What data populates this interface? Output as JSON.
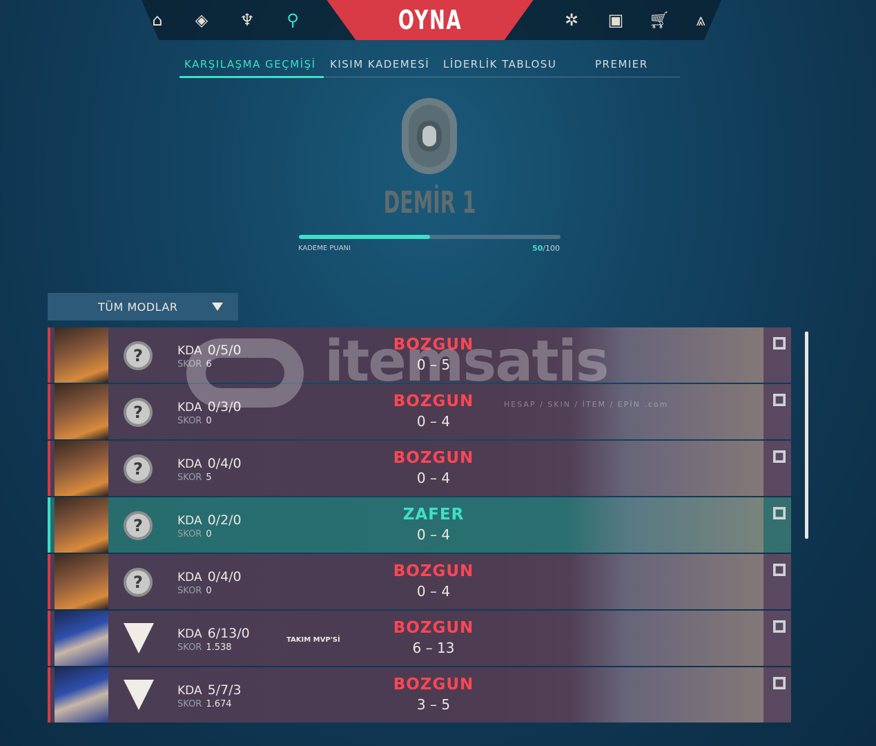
{
  "nav": {
    "play_label": "OYNA",
    "icons": [
      "home-icon",
      "agents-icon",
      "collection-icon",
      "career-icon",
      "esports-icon",
      "battlepass-icon",
      "store-icon",
      "rank-icon"
    ]
  },
  "tabs": [
    {
      "label": "KARŞILAŞMA GEÇMİŞİ",
      "active": true
    },
    {
      "label": "KISIM KADEMESİ"
    },
    {
      "label": "LİDERLİK TABLOSU"
    },
    {
      "label": "PREMIER"
    }
  ],
  "rank": {
    "name": "DEMİR 1",
    "rr_label": "KADEME PUANI",
    "rr_value": "50",
    "rr_max": "/100",
    "rr_fraction": 0.5
  },
  "filter": {
    "selected": "TÜM MODLAR"
  },
  "matches": [
    {
      "kda_label": "KDA",
      "kda": "0/5/0",
      "skor_label": "SKOR",
      "skor": "6",
      "result": "BOZGUN",
      "score": "0 – 5",
      "win": false,
      "agent": "orange"
    },
    {
      "kda_label": "KDA",
      "kda": "0/3/0",
      "skor_label": "SKOR",
      "skor": "0",
      "result": "BOZGUN",
      "score": "0 – 4",
      "win": false,
      "agent": "orange"
    },
    {
      "kda_label": "KDA",
      "kda": "0/4/0",
      "skor_label": "SKOR",
      "skor": "5",
      "result": "BOZGUN",
      "score": "0 – 4",
      "win": false,
      "agent": "orange"
    },
    {
      "kda_label": "KDA",
      "kda": "0/2/0",
      "skor_label": "SKOR",
      "skor": "0",
      "result": "ZAFER",
      "score": "0 – 4",
      "win": true,
      "agent": "orange"
    },
    {
      "kda_label": "KDA",
      "kda": "0/4/0",
      "skor_label": "SKOR",
      "skor": "0",
      "result": "BOZGUN",
      "score": "0 – 4",
      "win": false,
      "agent": "orange"
    },
    {
      "kda_label": "KDA",
      "kda": "6/13/0",
      "skor_label": "SKOR",
      "skor": "1.538",
      "mvp": "TAKIM MVP'Sİ",
      "result": "BOZGUN",
      "score": "6 – 13",
      "win": false,
      "agent": "blue"
    },
    {
      "kda_label": "KDA",
      "kda": "5/7/3",
      "skor_label": "SKOR",
      "skor": "1.674",
      "result": "BOZGUN",
      "score": "3 – 5",
      "win": false,
      "agent": "blue"
    }
  ],
  "watermark": {
    "text": "itemsatis",
    "sub": "HESAP / SKIN / İTEM / EPİN .com"
  },
  "colors": {
    "accent": "#3fe0c5",
    "loss": "#ff4655",
    "play": "#d83a46"
  }
}
